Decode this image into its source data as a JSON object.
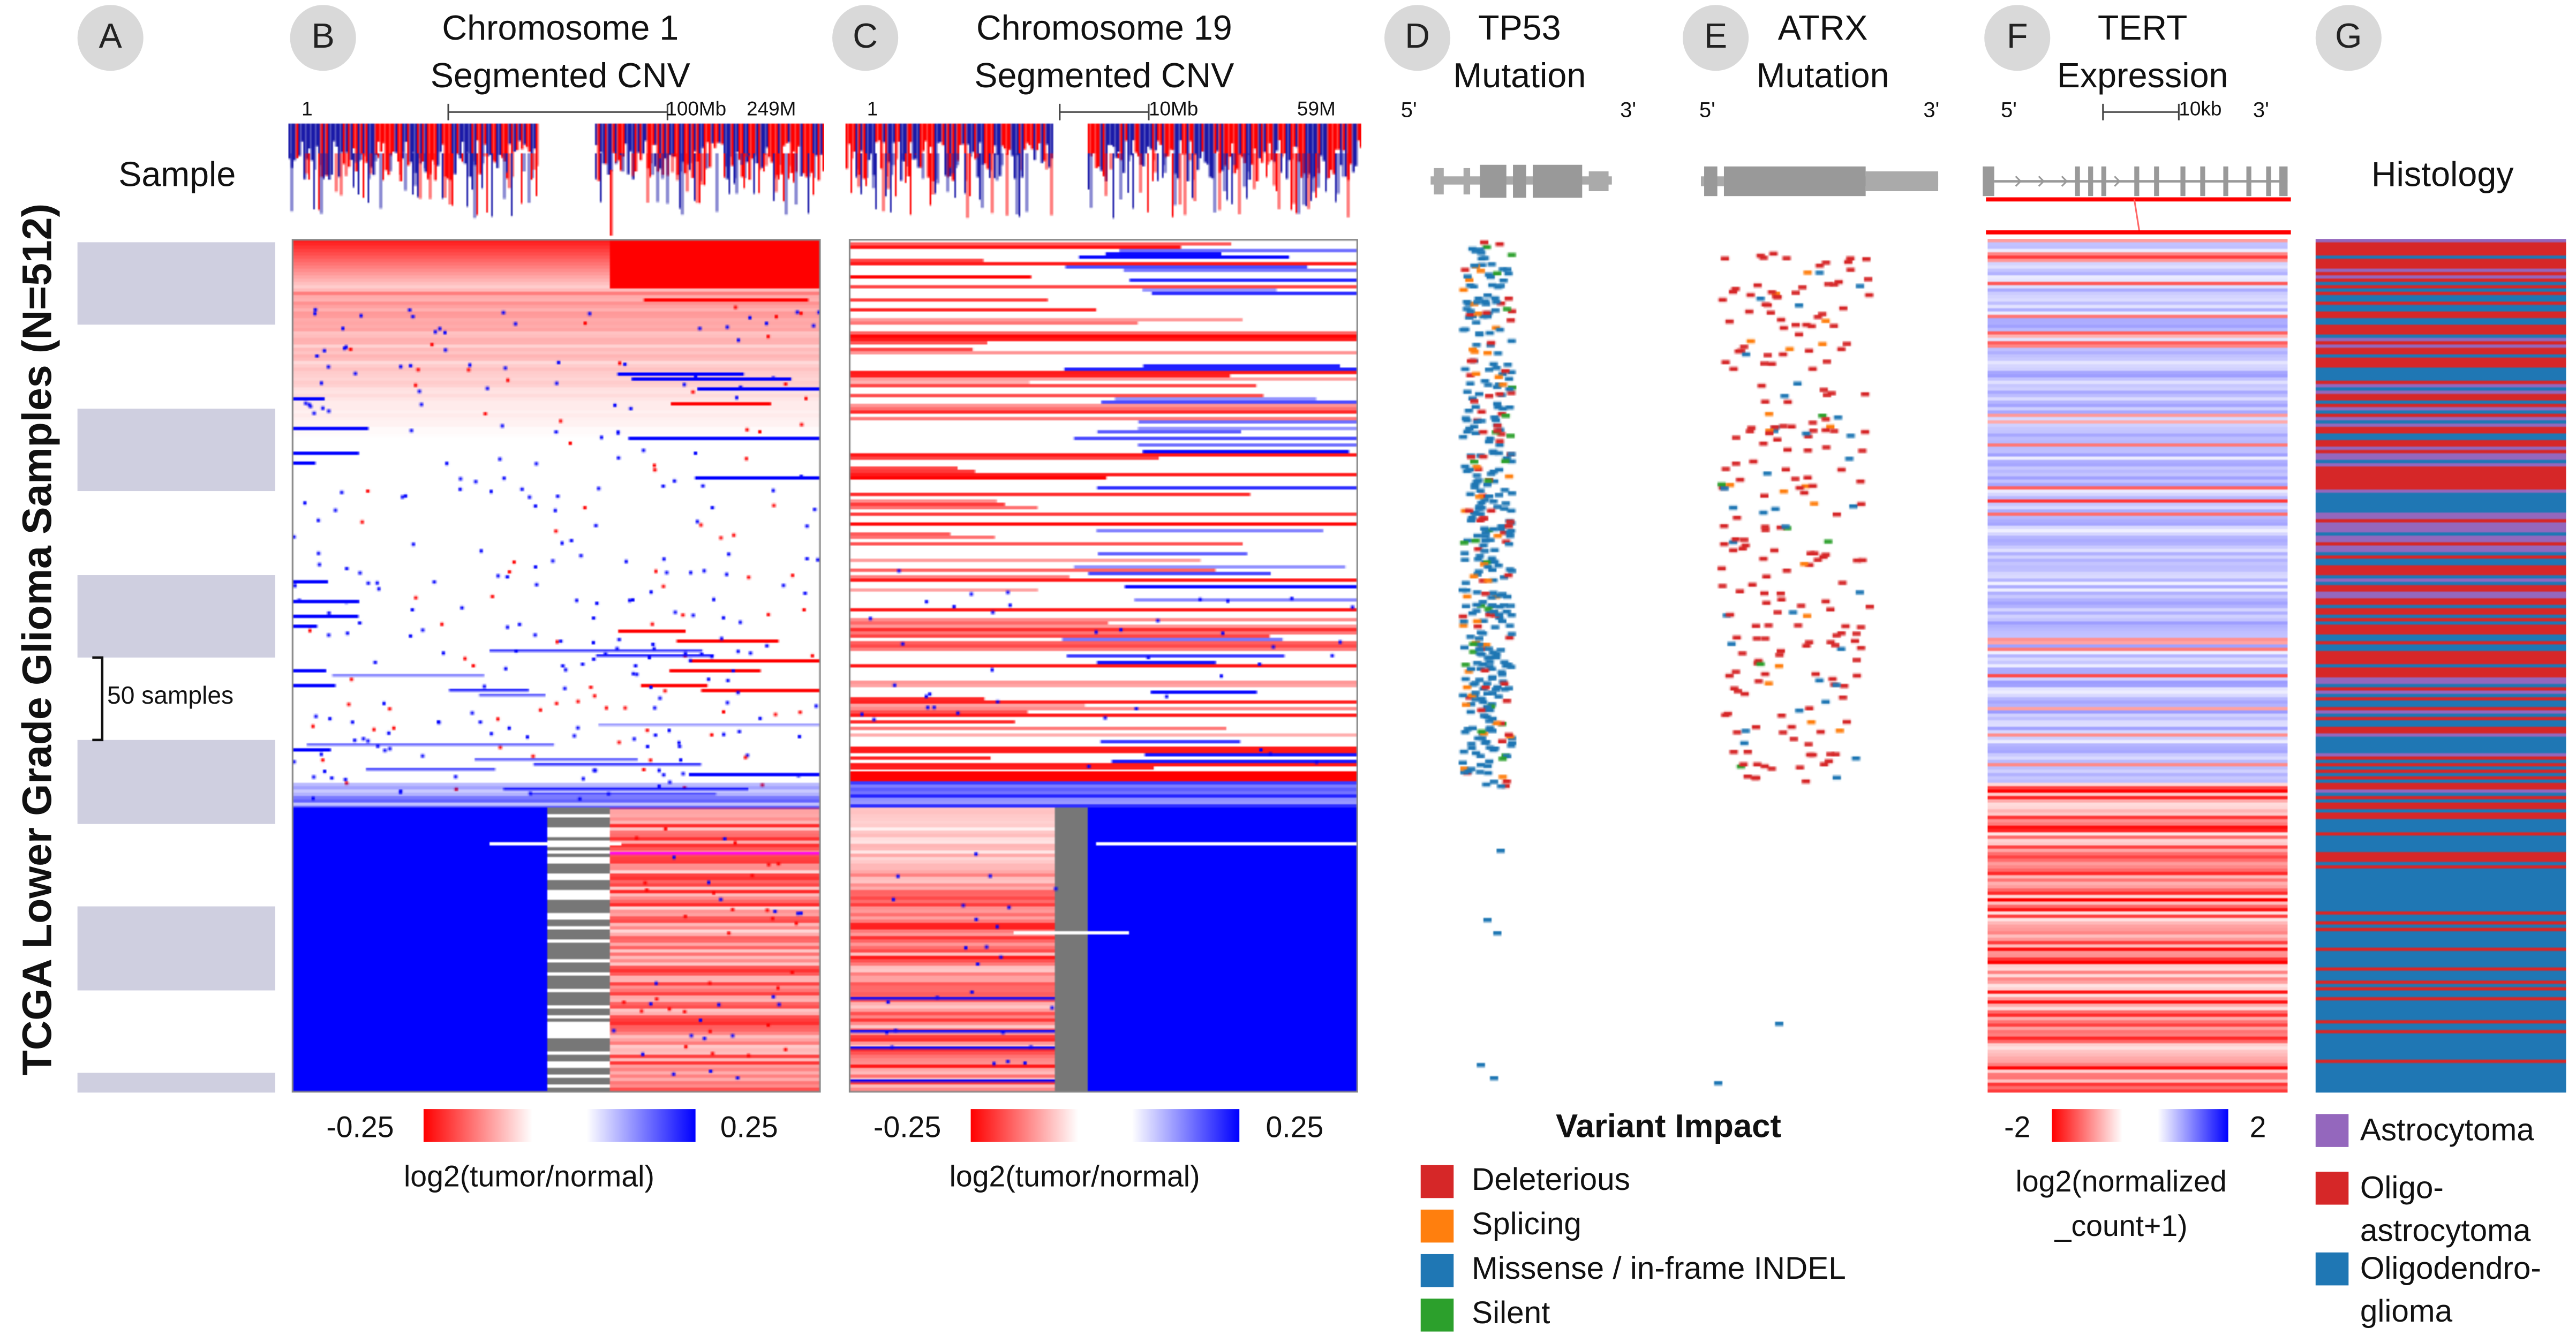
{
  "colors": {
    "gain": "#ff0000",
    "loss": "#0000ff",
    "neutral": "#888888",
    "deleterious": "#d62728",
    "splicing": "#ff7f0e",
    "missense": "#1f77b4",
    "silent": "#2ca02c",
    "astrocytoma": "#9467bd",
    "oligoastrocytoma": "#d62728",
    "oligodendroglioma": "#1f77b4",
    "sample_band": "#cfcfe0"
  },
  "y_axis_label": "TCGA Lower Grade Glioma Samples (N=512)",
  "panels": {
    "A": {
      "letter": "A",
      "title": "Sample",
      "bracket_label": "50 samples"
    },
    "B": {
      "letter": "B",
      "title": "Chromosome 1\nSegmented CNV",
      "start": "1",
      "scale": "100Mb",
      "end": "249M",
      "legend_min": "-0.25",
      "legend_max": "0.25",
      "legend_label": "log2(tumor/normal)"
    },
    "C": {
      "letter": "C",
      "title": "Chromosome 19\nSegmented CNV",
      "start": "1",
      "scale": "10Mb",
      "end": "59M",
      "legend_min": "-0.25",
      "legend_max": "0.25",
      "legend_label": "log2(tumor/normal)"
    },
    "D": {
      "letter": "D",
      "title": "TP53\nMutation",
      "five": "5'",
      "three": "3'"
    },
    "E": {
      "letter": "E",
      "title": "ATRX\nMutation",
      "five": "5'",
      "three": "3'"
    },
    "F": {
      "letter": "F",
      "title": "TERT\nExpression",
      "five": "5'",
      "three": "3'",
      "scale": "10kb",
      "legend_min": "-2",
      "legend_max": "2",
      "legend_label": "log2(normalized\n_count+1)"
    },
    "G": {
      "letter": "G",
      "title": "Histology"
    }
  },
  "variant_legend": {
    "title": "Variant Impact",
    "items": [
      {
        "label": "Deleterious",
        "color": "#d62728"
      },
      {
        "label": "Splicing",
        "color": "#ff7f0e"
      },
      {
        "label": "Missense / in-frame INDEL",
        "color": "#1f77b4"
      },
      {
        "label": "Silent",
        "color": "#2ca02c"
      }
    ]
  },
  "histology_legend": [
    {
      "label": "Astrocytoma",
      "color": "#9467bd"
    },
    {
      "label": "Oligo-\nastrocytoma",
      "color": "#d62728"
    },
    {
      "label": "Oligodendro-\nglioma",
      "color": "#1f77b4"
    }
  ]
}
